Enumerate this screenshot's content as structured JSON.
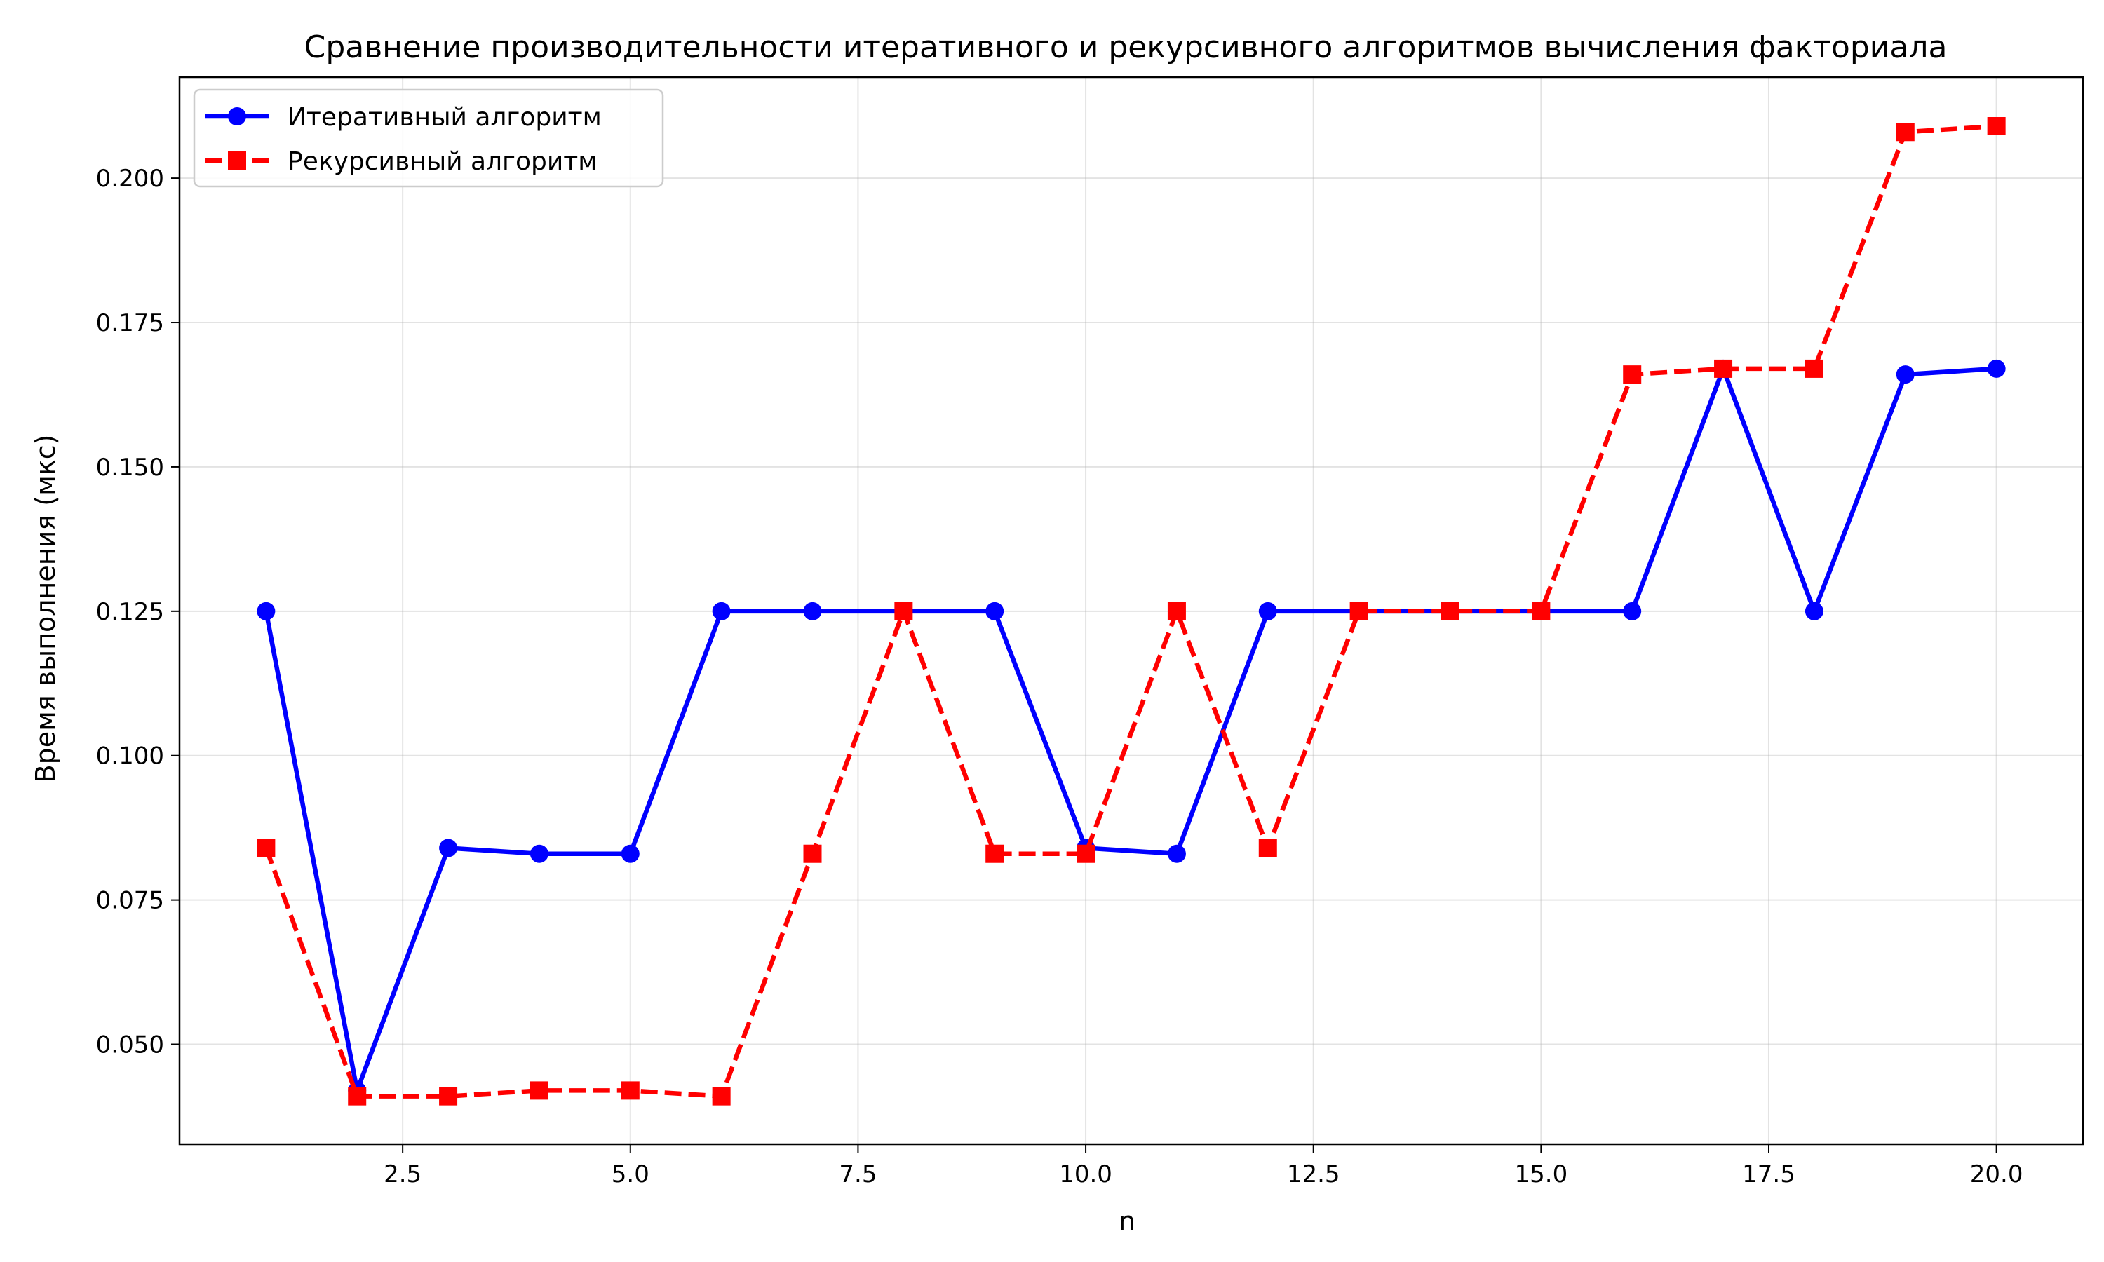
{
  "chart_data": {
    "type": "line",
    "title": "Сравнение производительности итеративного и рекурсивного алгоритмов вычисления факториала",
    "xlabel": "n",
    "ylabel": "Время выполнения (мкс)",
    "xlim": [
      0.05,
      20.95
    ],
    "ylim": [
      0.0327,
      0.2175
    ],
    "xticks": [
      2.5,
      5.0,
      7.5,
      10.0,
      12.5,
      15.0,
      17.5,
      20.0
    ],
    "xtick_labels": [
      "2.5",
      "5.0",
      "7.5",
      "10.0",
      "12.5",
      "15.0",
      "17.5",
      "20.0"
    ],
    "yticks": [
      0.05,
      0.075,
      0.1,
      0.125,
      0.15,
      0.175,
      0.2
    ],
    "ytick_labels": [
      "0.050",
      "0.075",
      "0.100",
      "0.125",
      "0.150",
      "0.175",
      "0.200"
    ],
    "grid": true,
    "legend_position": "top-left",
    "x": [
      1,
      2,
      3,
      4,
      5,
      6,
      7,
      8,
      9,
      10,
      11,
      12,
      13,
      14,
      15,
      16,
      17,
      18,
      19,
      20
    ],
    "series": [
      {
        "name": "Итеративный алгоритм",
        "color": "#0000ff",
        "line_style": "solid",
        "marker": "circle",
        "values": [
          0.125,
          0.042,
          0.084,
          0.083,
          0.083,
          0.125,
          0.125,
          0.125,
          0.125,
          0.084,
          0.083,
          0.125,
          0.125,
          0.125,
          0.125,
          0.125,
          0.167,
          0.125,
          0.166,
          0.167
        ]
      },
      {
        "name": "Рекурсивный алгоритм",
        "color": "#ff0000",
        "line_style": "dashed",
        "marker": "square",
        "values": [
          0.084,
          0.041,
          0.041,
          0.042,
          0.042,
          0.041,
          0.083,
          0.125,
          0.083,
          0.083,
          0.125,
          0.084,
          0.125,
          0.125,
          0.125,
          0.166,
          0.167,
          0.167,
          0.208,
          0.209
        ]
      }
    ]
  }
}
